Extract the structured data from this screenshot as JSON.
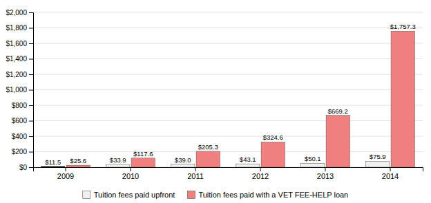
{
  "chart_data": {
    "type": "bar",
    "categories": [
      "2009",
      "2010",
      "2011",
      "2012",
      "2013",
      "2014"
    ],
    "series": [
      {
        "name": "Tuition fees paid upfront",
        "colors": [
          "#111111",
          "#f0f0f0",
          "#f0f0f0",
          "#f0f0f0",
          "#f0f0f0",
          "#f0f0f0"
        ],
        "values": [
          11.5,
          33.9,
          39.0,
          43.1,
          50.1,
          75.9
        ],
        "value_labels": [
          "$11.5",
          "$33.9",
          "$39.0",
          "$43.1",
          "$50.1",
          "$75.9"
        ]
      },
      {
        "name": "Tuition fees paid with a VET FEE-HELP loan",
        "color": "#f08080",
        "values": [
          25.6,
          117.6,
          205.3,
          324.6,
          669.2,
          1757.3
        ],
        "value_labels": [
          "$25.6",
          "$117.6",
          "$205.3",
          "$324.6",
          "$669.2",
          "$1,757.3"
        ]
      }
    ],
    "ylim": [
      0,
      2000
    ],
    "yticks": [
      {
        "value": 0,
        "label": "$0"
      },
      {
        "value": 200,
        "label": "$200"
      },
      {
        "value": 400,
        "label": "$400"
      },
      {
        "value": 600,
        "label": "$600"
      },
      {
        "value": 800,
        "label": "$800"
      },
      {
        "value": 1000,
        "label": "$1,000"
      },
      {
        "value": 1200,
        "label": "$1,200"
      },
      {
        "value": 1400,
        "label": "$1,400"
      },
      {
        "value": 1600,
        "label": "$1,600"
      },
      {
        "value": 1800,
        "label": "$1,800"
      },
      {
        "value": 2000,
        "label": "$2,000"
      }
    ],
    "grid": true,
    "data_labels": true,
    "legend": "bottom"
  }
}
